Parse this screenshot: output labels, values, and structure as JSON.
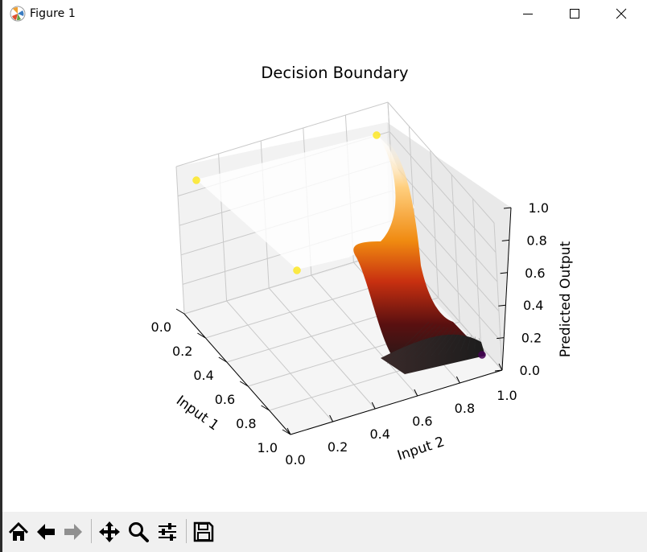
{
  "window": {
    "title": "Figure 1"
  },
  "toolbar": {
    "buttons": [
      {
        "name": "home-icon"
      },
      {
        "name": "back-arrow-icon"
      },
      {
        "name": "forward-arrow-icon"
      },
      {
        "name": "pan-move-icon"
      },
      {
        "name": "zoom-magnifier-icon"
      },
      {
        "name": "configure-subplots-icon"
      },
      {
        "name": "save-floppy-icon"
      }
    ]
  },
  "chart_data": {
    "type": "surface3d",
    "title": "Decision Boundary",
    "xlabel": "Input 1",
    "ylabel": "Input 2",
    "zlabel": "Predicted Output",
    "x_ticks": [
      "0.0",
      "0.2",
      "0.4",
      "0.6",
      "0.8",
      "1.0"
    ],
    "y_ticks": [
      "0.0",
      "0.2",
      "0.4",
      "0.6",
      "0.8",
      "1.0"
    ],
    "z_ticks": [
      "0.0",
      "0.2",
      "0.4",
      "0.6",
      "0.8",
      "1.0"
    ],
    "xlim": [
      0,
      1
    ],
    "ylim": [
      0,
      1
    ],
    "zlim": [
      0,
      1
    ],
    "colormap": "hot",
    "grid": true,
    "points": [
      {
        "x": 0,
        "y": 0,
        "z": 1,
        "color": "#fde725"
      },
      {
        "x": 0,
        "y": 1,
        "z": 1,
        "color": "#fde725"
      },
      {
        "x": 1,
        "y": 0,
        "z": 1,
        "color": "#fde725"
      },
      {
        "x": 1,
        "y": 1,
        "z": 0,
        "color": "#440154"
      }
    ],
    "surface": "predicted output is ~1.0 except near x≈1, y≈1 where it falls to ~0.0"
  }
}
